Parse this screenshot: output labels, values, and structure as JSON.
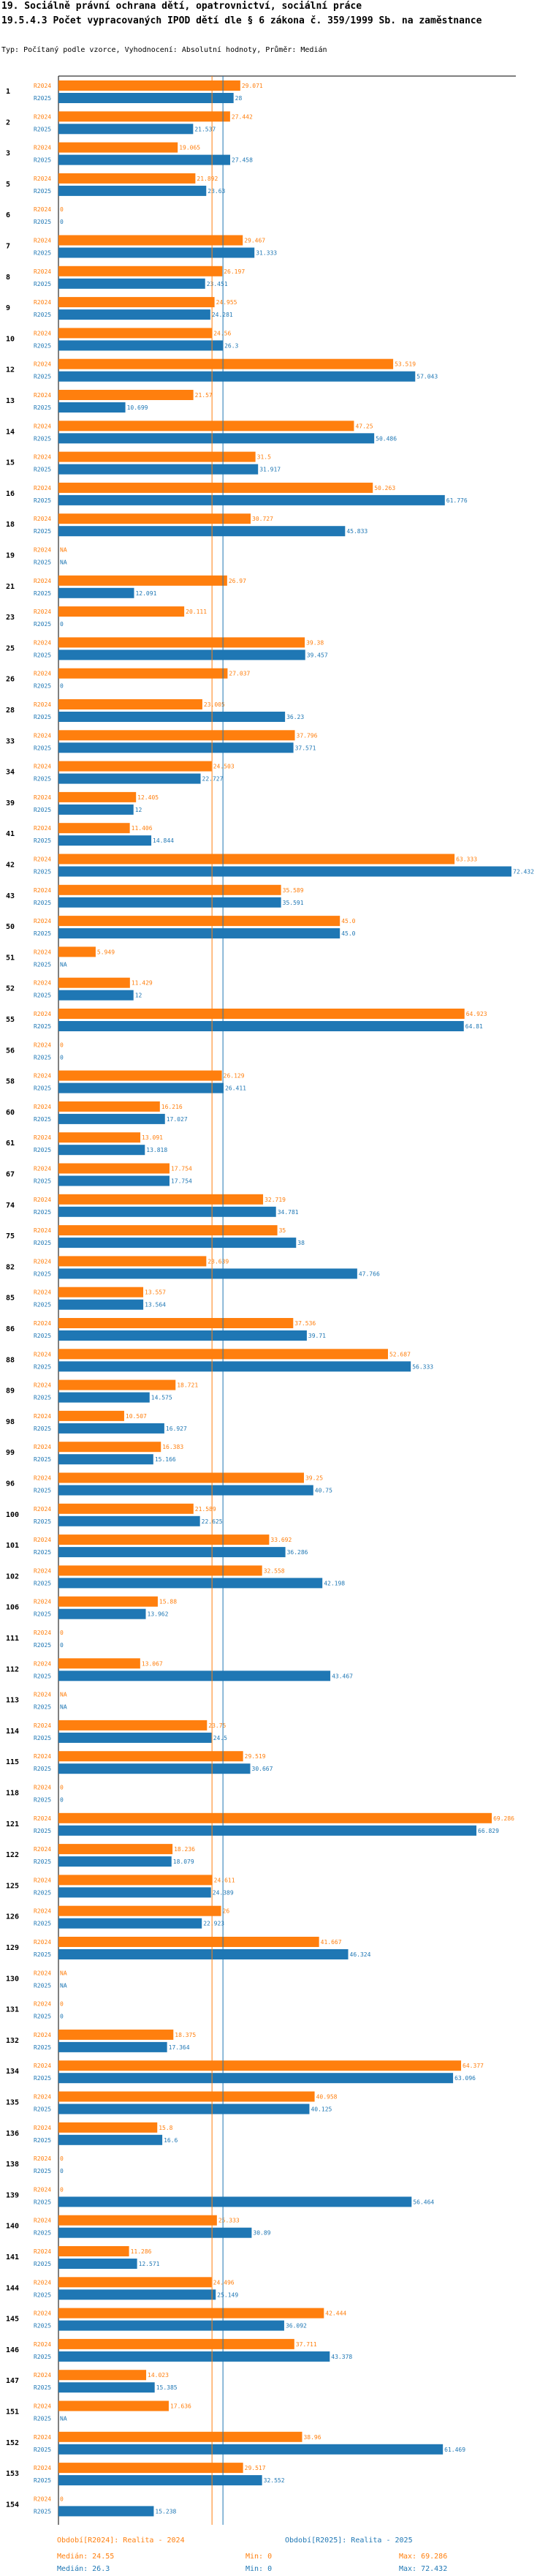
{
  "header": {
    "title_line1": "19. Sociálně právní ochrana dětí, opatrovnictví, sociální práce",
    "title_line2": "19.5.4.3 Počet vypracovaných IPOD dětí dle § 6 zákona č. 359/1999 Sb. na zaměstnance",
    "subtitle": "Typ: Počítaný podle vzorce, Vyhodnocení: Absolutní hodnoty, Průměr: Medián"
  },
  "colors": {
    "r2024": "#ff7f0e",
    "r2025": "#1f77b4",
    "grid": "#000000",
    "median2024": "#ff7f0e",
    "median2025": "#1f77b4"
  },
  "chart_data": {
    "type": "bar",
    "orientation": "horizontal",
    "xlim": [
      0,
      72.432
    ],
    "series_labels": [
      "R2024",
      "R2025"
    ],
    "categories": [
      "1",
      "2",
      "3",
      "5",
      "6",
      "7",
      "8",
      "9",
      "10",
      "12",
      "13",
      "14",
      "15",
      "16",
      "18",
      "19",
      "21",
      "23",
      "25",
      "26",
      "28",
      "33",
      "34",
      "39",
      "41",
      "42",
      "43",
      "50",
      "51",
      "52",
      "55",
      "56",
      "58",
      "60",
      "61",
      "67",
      "74",
      "75",
      "82",
      "85",
      "86",
      "88",
      "89",
      "98",
      "99",
      "96",
      "100",
      "101",
      "102",
      "106",
      "111",
      "112",
      "113",
      "114",
      "115",
      "118",
      "121",
      "122",
      "125",
      "126",
      "129",
      "130",
      "131",
      "132",
      "134",
      "135",
      "136",
      "138",
      "139",
      "140",
      "141",
      "144",
      "145",
      "146",
      "147",
      "151",
      "152",
      "153",
      "154"
    ],
    "series": [
      {
        "name": "Období[R2024]: Realita - 2024",
        "values": [
          29.071,
          27.442,
          19.065,
          21.892,
          0,
          29.467,
          26.197,
          24.955,
          24.56,
          53.519,
          21.57,
          47.25,
          31.5,
          50.263,
          30.727,
          "NA",
          26.97,
          20.111,
          39.38,
          27.037,
          23.005,
          37.796,
          24.503,
          12.405,
          11.406,
          63.333,
          35.589,
          45.0,
          5.949,
          11.429,
          64.923,
          0,
          26.129,
          16.216,
          13.091,
          17.754,
          32.719,
          35.0,
          23.639,
          13.557,
          37.536,
          52.687,
          18.721,
          10.507,
          16.383,
          39.25,
          21.589,
          33.692,
          32.558,
          15.88,
          0,
          13.067,
          "NA",
          23.75,
          29.519,
          0,
          69.286,
          18.236,
          24.611,
          26.0,
          41.667,
          "NA",
          0,
          18.375,
          64.377,
          40.958,
          15.8,
          0,
          0,
          25.333,
          11.286,
          24.496,
          42.444,
          37.711,
          14.023,
          17.636,
          38.96,
          29.517,
          0
        ],
        "labels": [
          "29.071",
          "27.442",
          "19.065",
          "21.892",
          "0",
          "29.467",
          "26.197",
          "24.955",
          "24.56",
          "53.519",
          "21.57",
          "47.25",
          "31.5",
          "50.263",
          "30.727",
          "NA",
          "26.97",
          "20.111",
          "39.38",
          "27.037",
          "23.005",
          "37.796",
          "24.503",
          "12.405",
          "11.406",
          "63.333",
          "35.589",
          "45.0",
          "5.949",
          "11.429",
          "64.923",
          "0",
          "26.129",
          "16.216",
          "13.091",
          "17.754",
          "32.719",
          "35",
          "23.639",
          "13.557",
          "37.536",
          "52.687",
          "18.721",
          "10.507",
          "16.383",
          "39.25",
          "21.589",
          "33.692",
          "32.558",
          "15.88",
          "0",
          "13.067",
          "NA",
          "23.75",
          "29.519",
          "0",
          "69.286",
          "18.236",
          "24.611",
          "26",
          "41.667",
          "NA",
          "0",
          "18.375",
          "64.377",
          "40.958",
          "15.8",
          "0",
          "0",
          "25.333",
          "11.286",
          "24.496",
          "42.444",
          "37.711",
          "14.023",
          "17.636",
          "38.96",
          "29.517",
          "0"
        ]
      },
      {
        "name": "Období[R2025]: Realita - 2025",
        "values": [
          28,
          21.537,
          27.458,
          23.63,
          0,
          31.333,
          23.451,
          24.281,
          26.3,
          57.043,
          10.699,
          50.486,
          31.917,
          61.776,
          45.833,
          "NA",
          12.091,
          0,
          39.457,
          0,
          36.23,
          37.571,
          22.727,
          12,
          14.844,
          72.432,
          35.591,
          45.0,
          "NA",
          12,
          64.81,
          0,
          26.411,
          17.027,
          13.818,
          17.754,
          34.781,
          38,
          47.766,
          13.564,
          39.71,
          56.333,
          14.575,
          16.927,
          15.166,
          40.75,
          22.625,
          36.286,
          42.198,
          13.962,
          0,
          43.467,
          "NA",
          24.5,
          30.667,
          0,
          66.829,
          18.079,
          24.389,
          22.923,
          46.324,
          "NA",
          0,
          17.364,
          63.096,
          40.125,
          16.6,
          0,
          56.464,
          30.89,
          12.571,
          25.149,
          36.092,
          43.378,
          15.385,
          "NA",
          61.469,
          32.552,
          15.238
        ],
        "labels": [
          "28",
          "21.537",
          "27.458",
          "23.63",
          "0",
          "31.333",
          "23.451",
          "24.281",
          "26.3",
          "57.043",
          "10.699",
          "50.486",
          "31.917",
          "61.776",
          "45.833",
          "NA",
          "12.091",
          "0",
          "39.457",
          "0",
          "36.23",
          "37.571",
          "22.727",
          "12",
          "14.844",
          "72.432",
          "35.591",
          "45.0",
          "NA",
          "12",
          "64.81",
          "0",
          "26.411",
          "17.027",
          "13.818",
          "17.754",
          "34.781",
          "38",
          "47.766",
          "13.564",
          "39.71",
          "56.333",
          "14.575",
          "16.927",
          "15.166",
          "40.75",
          "22.625",
          "36.286",
          "42.198",
          "13.962",
          "0",
          "43.467",
          "NA",
          "24.5",
          "30.667",
          "0",
          "66.829",
          "18.079",
          "24.389",
          "22.923",
          "46.324",
          "NA",
          "0",
          "17.364",
          "63.096",
          "40.125",
          "16.6",
          "0",
          "56.464",
          "30.89",
          "12.571",
          "25.149",
          "36.092",
          "43.378",
          "15.385",
          "NA",
          "61.469",
          "32.552",
          "15.238"
        ]
      }
    ],
    "medians": {
      "r2024": 24.55,
      "r2025": 26.3
    }
  },
  "legend": {
    "r2024": {
      "label": "Období[R2024]: Realita - 2024",
      "median": "Medián: 24.55",
      "min": "Min: 0",
      "max": "Max: 69.286"
    },
    "r2025": {
      "label": "Období[R2025]: Realita - 2025",
      "median": "Medián: 26.3",
      "min": "Min: 0",
      "max": "Max: 72.432"
    }
  }
}
